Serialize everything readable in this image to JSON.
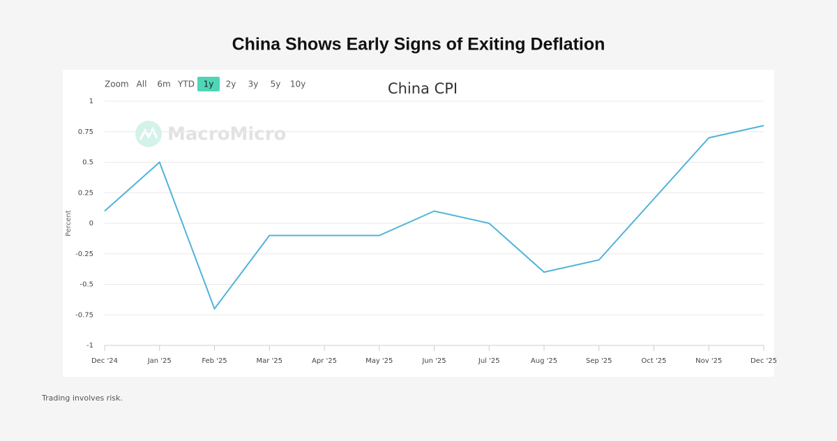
{
  "header": {
    "title": "China Shows Early Signs of Exiting Deflation"
  },
  "range_selector": {
    "label": "Zoom",
    "buttons": [
      "All",
      "6m",
      "YTD",
      "1y",
      "2y",
      "3y",
      "5y",
      "10y"
    ],
    "selected_index": 3
  },
  "watermark": "MacroMicro",
  "chart_data": {
    "type": "line",
    "title": "China CPI",
    "y_label": "Percent",
    "categories": [
      "Dec '24",
      "Jan '25",
      "Feb '25",
      "Mar '25",
      "Apr '25",
      "May '25",
      "Jun '25",
      "Jul '25",
      "Aug '25",
      "Sep '25",
      "Oct '25",
      "Nov '25",
      "Dec '25"
    ],
    "series": [
      {
        "name": "China CPI",
        "color": "#4fb3d9",
        "values": [
          0.1,
          0.5,
          -0.7,
          -0.1,
          -0.1,
          -0.1,
          0.1,
          0,
          -0.4,
          -0.3,
          0.2,
          0.7,
          0.8
        ]
      }
    ],
    "ylim": [
      -1,
      1
    ],
    "yticks": [
      -1,
      -0.75,
      -0.5,
      -0.25,
      0,
      0.25,
      0.5,
      0.75,
      1
    ],
    "grid": true
  },
  "footer": {
    "note": "Trading involves risk."
  }
}
